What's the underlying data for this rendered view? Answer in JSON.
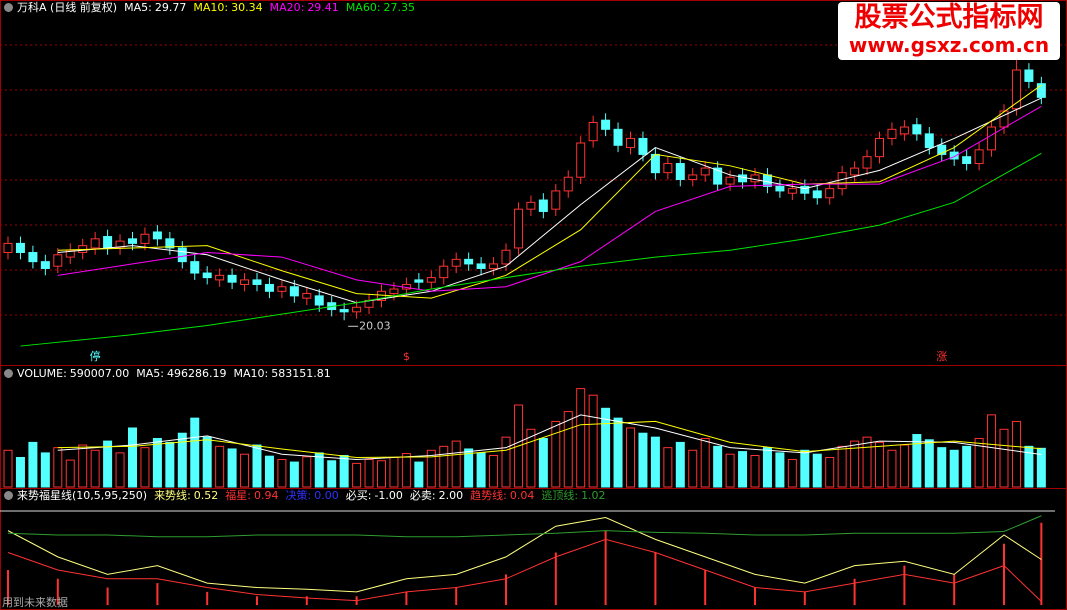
{
  "chart_data": [
    {
      "type": "candlestick",
      "title": "万科A (日线 前复权)",
      "open": [
        23.0,
        23.4,
        23.0,
        22.6,
        22.4,
        22.8,
        23.0,
        23.2,
        23.7,
        23.2,
        23.6,
        23.4,
        23.9,
        23.6,
        23.2,
        22.6,
        22.1,
        21.8,
        22.0,
        21.6,
        21.8,
        21.6,
        21.3,
        21.5,
        21.0,
        21.1,
        20.8,
        20.5,
        20.4,
        20.6,
        20.9,
        21.2,
        21.4,
        21.8,
        21.7,
        21.9,
        22.4,
        22.7,
        22.5,
        22.3,
        22.5,
        23.2,
        24.9,
        25.3,
        24.9,
        25.7,
        26.3,
        27.9,
        28.8,
        28.4,
        27.6,
        28.0,
        27.3,
        26.5,
        26.9,
        26.2,
        26.4,
        26.7,
        26.0,
        26.4,
        26.1,
        26.4,
        25.9,
        25.6,
        25.9,
        25.7,
        25.4,
        25.8,
        26.4,
        26.7,
        27.2,
        28.0,
        28.2,
        28.6,
        28.2,
        27.7,
        27.4,
        27.2,
        26.9,
        27.5,
        28.5,
        29.3,
        31.0,
        30.4
      ],
      "high": [
        23.7,
        23.7,
        23.3,
        22.9,
        23.2,
        23.4,
        23.6,
        23.9,
        24.0,
        23.8,
        23.9,
        24.1,
        24.2,
        23.9,
        23.5,
        22.9,
        22.4,
        22.3,
        22.3,
        22.1,
        22.1,
        21.9,
        21.8,
        21.8,
        21.5,
        21.4,
        21.1,
        20.8,
        20.9,
        21.2,
        21.6,
        21.7,
        21.9,
        22.1,
        22.2,
        22.7,
        23.0,
        23.0,
        22.8,
        22.8,
        23.4,
        25.2,
        25.5,
        25.6,
        26.0,
        26.6,
        28.1,
        29.0,
        29.1,
        28.7,
        28.3,
        28.3,
        27.6,
        27.2,
        27.2,
        26.7,
        27.0,
        27.0,
        26.6,
        26.7,
        26.7,
        26.7,
        26.2,
        26.1,
        26.2,
        26.0,
        26.1,
        26.8,
        27.0,
        27.5,
        28.3,
        28.7,
        28.8,
        28.9,
        28.5,
        28.0,
        27.7,
        27.5,
        27.8,
        28.8,
        29.5,
        31.6,
        31.3,
        30.7
      ],
      "low": [
        22.7,
        22.7,
        22.3,
        22.0,
        22.1,
        22.5,
        22.7,
        22.9,
        22.9,
        22.9,
        23.1,
        23.1,
        23.3,
        22.9,
        22.3,
        21.8,
        21.6,
        21.5,
        21.4,
        21.3,
        21.3,
        21.0,
        21.0,
        20.8,
        20.7,
        20.4,
        20.2,
        20.03,
        20.1,
        20.3,
        20.6,
        20.9,
        21.1,
        21.4,
        21.4,
        21.6,
        22.1,
        22.2,
        22.0,
        22.0,
        22.2,
        22.9,
        24.6,
        24.5,
        24.6,
        25.4,
        26.0,
        27.6,
        28.1,
        27.4,
        27.3,
        27.0,
        26.2,
        26.2,
        25.9,
        25.9,
        26.1,
        25.7,
        25.7,
        25.8,
        25.8,
        25.6,
        25.4,
        25.3,
        25.3,
        25.1,
        25.1,
        25.5,
        26.1,
        26.4,
        26.9,
        27.7,
        27.9,
        27.9,
        27.3,
        27.0,
        26.8,
        26.6,
        26.6,
        27.2,
        28.2,
        29.0,
        30.2,
        29.5
      ],
      "close": [
        23.4,
        23.0,
        22.6,
        22.3,
        22.9,
        23.1,
        23.3,
        23.6,
        23.2,
        23.5,
        23.4,
        23.8,
        23.6,
        23.2,
        22.6,
        22.1,
        21.9,
        22.0,
        21.7,
        21.8,
        21.6,
        21.3,
        21.5,
        21.1,
        21.2,
        20.7,
        20.5,
        20.4,
        20.6,
        20.9,
        21.3,
        21.4,
        21.6,
        21.7,
        21.9,
        22.4,
        22.7,
        22.5,
        22.3,
        22.5,
        23.1,
        24.9,
        25.2,
        24.8,
        25.7,
        26.3,
        27.8,
        28.7,
        28.4,
        27.7,
        28.0,
        27.3,
        26.5,
        26.9,
        26.2,
        26.4,
        26.7,
        26.0,
        26.3,
        26.1,
        26.4,
        25.9,
        25.7,
        25.8,
        25.6,
        25.4,
        25.8,
        26.5,
        26.7,
        27.2,
        28.0,
        28.4,
        28.5,
        28.2,
        27.6,
        27.3,
        27.1,
        26.9,
        27.5,
        28.5,
        29.2,
        31.0,
        30.5,
        29.8
      ],
      "up_color": "#ff3232",
      "down_color": "#54ffff",
      "ylim": [
        18.07,
        33.98
      ],
      "low_mark_index": 27,
      "lines": [
        {
          "name": "MA5",
          "color": "#ffffff",
          "x": [
            4,
            10,
            16,
            22,
            28,
            34,
            40,
            46,
            52,
            58,
            64,
            70,
            76,
            83
          ],
          "values": [
            23.0,
            23.3,
            22.9,
            21.8,
            20.8,
            21.3,
            22.4,
            25.1,
            27.6,
            26.4,
            25.8,
            26.6,
            28.0,
            29.77
          ]
        },
        {
          "name": "MA10",
          "color": "#ffff00",
          "x": [
            4,
            10,
            16,
            22,
            28,
            34,
            40,
            46,
            52,
            58,
            64,
            70,
            76,
            83
          ],
          "values": [
            23.1,
            23.2,
            23.3,
            22.2,
            21.2,
            21.0,
            22.0,
            24.0,
            27.3,
            26.8,
            26.0,
            26.1,
            27.6,
            30.34
          ]
        },
        {
          "name": "MA20",
          "color": "#ff00ff",
          "x": [
            4,
            10,
            16,
            22,
            28,
            34,
            40,
            46,
            52,
            58,
            64,
            70,
            76,
            83
          ],
          "values": [
            22.0,
            22.5,
            23.0,
            22.8,
            21.8,
            21.3,
            21.5,
            22.6,
            24.8,
            25.9,
            26.0,
            26.0,
            27.2,
            29.41
          ]
        },
        {
          "name": "MA60",
          "color": "#00e600",
          "x": [
            1,
            10,
            16,
            22,
            28,
            34,
            40,
            46,
            52,
            58,
            64,
            70,
            76,
            83
          ],
          "values": [
            18.9,
            19.4,
            19.8,
            20.3,
            20.8,
            21.4,
            21.9,
            22.4,
            22.8,
            23.1,
            23.6,
            24.2,
            25.2,
            27.35
          ]
        }
      ],
      "markers": [
        {
          "text": "停",
          "index": 7,
          "color": "#54ffff"
        },
        {
          "text": "$",
          "index": 32,
          "color": "#ff3232"
        },
        {
          "text": "涨",
          "index": 75,
          "color": "#ff3232"
        }
      ],
      "watermark": {
        "title": "股票公式指标网",
        "url": "www.gsxz.com.cn"
      }
    },
    {
      "type": "bar",
      "readouts": [
        {
          "name": "VOLUME",
          "value": 590007,
          "label": "590007.00",
          "color": "#ffffff"
        },
        {
          "name": "MA5",
          "value": 496286.19,
          "color": "#ffffff"
        },
        {
          "name": "MA10",
          "value": 583151.81,
          "color": "#ffffff"
        }
      ],
      "values": [
        560000,
        450000,
        680000,
        520000,
        600000,
        410000,
        640000,
        560000,
        700000,
        520000,
        900000,
        600000,
        740000,
        680000,
        820000,
        1050000,
        760000,
        620000,
        580000,
        500000,
        640000,
        470000,
        420000,
        380000,
        460000,
        520000,
        400000,
        480000,
        360000,
        420000,
        400000,
        450000,
        510000,
        380000,
        560000,
        620000,
        700000,
        580000,
        520000,
        480000,
        760000,
        1250000,
        880000,
        740000,
        1000000,
        1150000,
        1500000,
        1400000,
        1200000,
        1050000,
        900000,
        820000,
        760000,
        600000,
        680000,
        560000,
        740000,
        620000,
        500000,
        540000,
        480000,
        600000,
        520000,
        420000,
        560000,
        500000,
        450000,
        620000,
        700000,
        760000,
        680000,
        560000,
        640000,
        800000,
        720000,
        600000,
        560000,
        620000,
        740000,
        1100000,
        880000,
        1000000,
        620000,
        590007
      ],
      "ylim": [
        0,
        1845000
      ],
      "lines": [
        {
          "name": "MA5",
          "color": "#ffffff",
          "x": [
            4,
            10,
            16,
            22,
            28,
            34,
            40,
            46,
            52,
            58,
            64,
            70,
            76,
            83
          ],
          "values": [
            560000,
            640000,
            780000,
            500000,
            420000,
            480000,
            600000,
            1100000,
            900000,
            600000,
            520000,
            700000,
            680000,
            496286.19
          ]
        },
        {
          "name": "MA10",
          "color": "#ffff00",
          "x": [
            4,
            10,
            16,
            22,
            28,
            34,
            40,
            46,
            52,
            58,
            64,
            70,
            76,
            83
          ],
          "values": [
            600000,
            620000,
            720000,
            580000,
            450000,
            460000,
            560000,
            950000,
            1000000,
            680000,
            540000,
            620000,
            700000,
            583151.81
          ]
        }
      ]
    },
    {
      "type": "line",
      "title": "来势福星线(10,5,95,250)",
      "note": "用到未来数据",
      "ylim": [
        0,
        1.2
      ],
      "bars": {
        "name": "福星",
        "color": "#ff3232",
        "x": [
          0,
          4,
          8,
          12,
          16,
          20,
          24,
          28,
          32,
          36,
          40,
          44,
          48,
          52,
          56,
          60,
          64,
          68,
          72,
          76,
          80,
          83
        ],
        "values": [
          0.4,
          0.3,
          0.2,
          0.25,
          0.15,
          0.1,
          0.1,
          0.1,
          0.15,
          0.2,
          0.35,
          0.6,
          0.85,
          0.6,
          0.4,
          0.2,
          0.15,
          0.3,
          0.45,
          0.35,
          0.7,
          0.94
        ]
      },
      "lines": [
        {
          "name": "来势线",
          "color": "#ffff80",
          "x": [
            0,
            4,
            8,
            12,
            16,
            20,
            24,
            28,
            32,
            36,
            40,
            44,
            48,
            52,
            56,
            60,
            64,
            68,
            72,
            76,
            80,
            83
          ],
          "values": [
            0.85,
            0.55,
            0.35,
            0.45,
            0.25,
            0.2,
            0.18,
            0.15,
            0.3,
            0.35,
            0.55,
            0.9,
            1.0,
            0.75,
            0.55,
            0.35,
            0.25,
            0.45,
            0.5,
            0.35,
            0.8,
            0.52
          ]
        },
        {
          "name": "趋势线",
          "color": "#ff3232",
          "x": [
            0,
            4,
            8,
            12,
            16,
            20,
            24,
            28,
            32,
            36,
            40,
            44,
            48,
            52,
            56,
            60,
            64,
            68,
            72,
            76,
            80,
            83
          ],
          "values": [
            0.6,
            0.4,
            0.3,
            0.3,
            0.2,
            0.12,
            0.08,
            0.05,
            0.15,
            0.2,
            0.3,
            0.55,
            0.75,
            0.6,
            0.4,
            0.2,
            0.15,
            0.25,
            0.35,
            0.25,
            0.45,
            0.04
          ]
        },
        {
          "name": "逃顶线",
          "color": "#2e9e2e",
          "x": [
            0,
            4,
            8,
            12,
            16,
            20,
            24,
            28,
            32,
            36,
            40,
            44,
            48,
            52,
            56,
            60,
            64,
            68,
            72,
            76,
            80,
            83
          ],
          "values": [
            0.82,
            0.8,
            0.8,
            0.78,
            0.78,
            0.8,
            0.8,
            0.8,
            0.78,
            0.78,
            0.8,
            0.82,
            0.85,
            0.83,
            0.82,
            0.8,
            0.8,
            0.82,
            0.82,
            0.82,
            0.84,
            1.02
          ]
        }
      ],
      "readouts": [
        {
          "name": "决策",
          "value": 0,
          "label": "0.00",
          "color": "#3030ff"
        },
        {
          "name": "必买",
          "value": -1,
          "label": "-1.00",
          "color": "#ffffff"
        },
        {
          "name": "必卖",
          "value": 2,
          "label": "2.00",
          "color": "#ffffff"
        }
      ]
    }
  ]
}
